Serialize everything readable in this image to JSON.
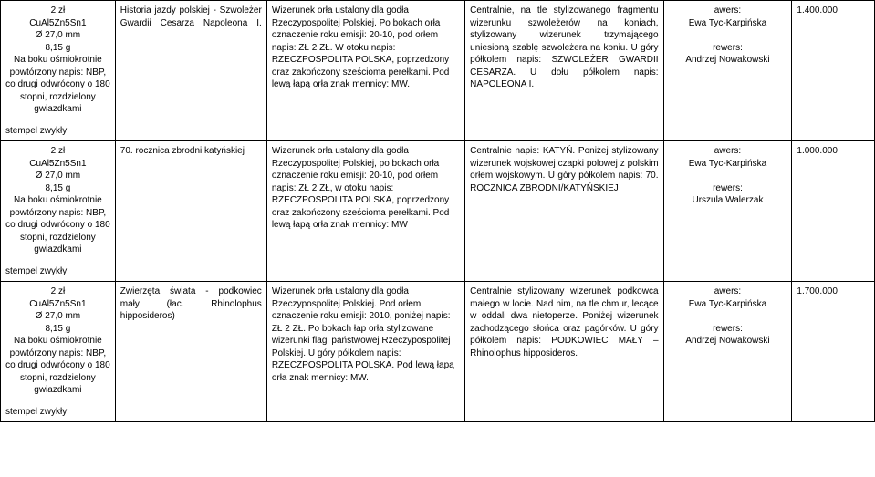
{
  "rows": [
    {
      "specs": "2 zł\nCuAl5Zn5Sn1\nØ 27,0 mm\n8,15 g\nNa boku ośmiokrotnie powtórzony napis: NBP, co drugi odwrócony o 180 stopni, rozdzielony gwiazdkami",
      "stamp": "stempel zwykły",
      "theme_html": "<span class=\"col2-justify\" style=\"display:block\">Historia jazdy polskiej - Szwoleżer Gwardii Cesarza Napoleona I.</span>",
      "obverse": "Wizerunek orła ustalony dla godła Rzeczypospolitej Polskiej. Po bokach orła oznaczenie roku emisji: 20-10, pod orłem napis: ZŁ 2 ZŁ. W otoku napis: RZECZPOSPOLITA POLSKA, poprzedzony oraz zakończony sześcioma perełkami. Pod lewą łapą orła znak mennicy: MW.",
      "reverse": "Centralnie, na tle stylizowanego fragmentu wizerunku szwoleżerów na koniach, stylizowany wizerunek trzymającego uniesioną szablę szwoleżera na koniu. U góry półkolem napis: SZWOLEŻER GWARDII CESARZA. U dołu półkolem napis: NAPOLEONA I.",
      "designers_html": "<div class=\"aw-block\">awers:<br>Ewa Tyc-Karpińska<br><br>rewers:<br>Andrzej Nowakowski</div>",
      "mintage": "1.400.000"
    },
    {
      "specs": "2 zł\nCuAl5Zn5Sn1\nØ 27,0 mm\n8,15 g\nNa boku ośmiokrotnie powtórzony napis: NBP, co drugi odwrócony o 180 stopni, rozdzielony gwiazdkami",
      "stamp": "stempel zwykły",
      "theme_html": "70. rocznica zbrodni katyńskiej",
      "obverse": "Wizerunek orła ustalony dla godła Rzeczypospolitej Polskiej, po bokach orła oznaczenie roku emisji: 20-10, pod orłem napis: ZŁ 2 ZŁ, w otoku napis: RZECZPOSPOLITA POLSKA, poprzedzony oraz zakończony sześcioma perełkami. Pod lewą łapą orła znak mennicy: MW",
      "reverse": "Centralnie napis: KATYŃ. Poniżej stylizowany wizerunek wojskowej czapki polowej z polskim orłem wojskowym. U góry półkolem napis: 70. ROCZNICA ZBRODNI/KATYŃSKIEJ",
      "designers_html": "<div class=\"aw-block\">awers:<br>Ewa Tyc-Karpińska<br><br>rewers:<br>Urszula Walerzak</div>",
      "mintage": "1.000.000"
    },
    {
      "specs": "2 zł\nCuAl5Zn5Sn1\nØ 27,0 mm\n8,15 g\nNa boku ośmiokrotnie powtórzony napis: NBP, co drugi odwrócony o 180 stopni, rozdzielony gwiazdkami",
      "stamp": "stempel zwykły",
      "theme_html": "<span style=\"display:block;text-align:justify;text-align-last:justify\">Zwierzęta świata - podkowiec</span><span style=\"display:block;text-align:justify;text-align-last:justify\">mały (łac. Rhinolophus</span>hipposideros)",
      "obverse": "Wizerunek orła ustalony dla godła Rzeczypospolitej Polskiej. Pod orłem oznaczenie roku emisji: 2010, poniżej napis: ZŁ 2 ZŁ. Po bokach łap orła stylizowane wizerunki flagi państwowej Rzeczypospolitej Polskiej. U góry półkolem napis: RZECZPOSPOLITA POLSKA. Pod lewą łapą orła znak mennicy: MW.",
      "reverse_html": "<span style=\"display:block;text-align:justify\">Centralnie stylizowany wizerunek podkowca małego w locie. Nad nim, na tle chmur, lecące w oddali dwa nietoperze. Poniżej wizerunek zachodzącego słońca oraz pagórków. U góry półkolem napis: PODKOWIEC MAŁY – Rhinolophus hipposideros.</span>",
      "designers_html": "<div class=\"aw-block\">awers:<br>Ewa Tyc-Karpińska<br><br>rewers:<br>Andrzej Nowakowski</div>",
      "mintage": "1.700.000"
    }
  ]
}
